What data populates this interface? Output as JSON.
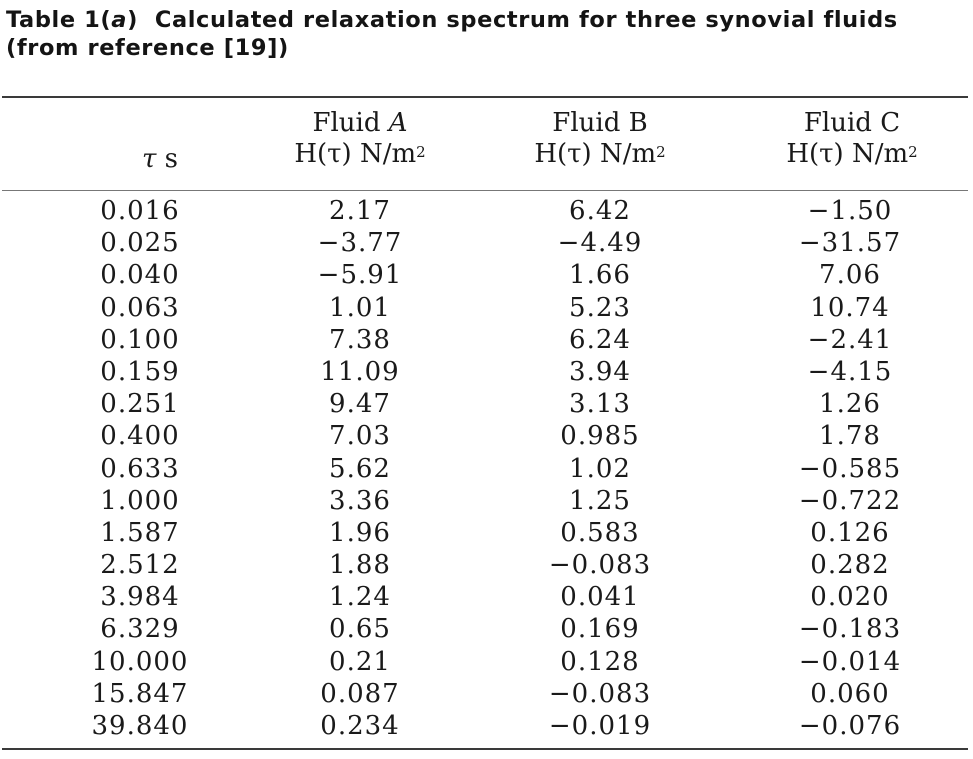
{
  "caption": {
    "label": "Table 1(",
    "label_italic": "a",
    "label_close": ")",
    "title_rest": "Calculated relaxation spectrum for three synovial fluids",
    "line2": "(from reference [19])"
  },
  "headers": {
    "tau": {
      "symbol": "τ",
      "unit": "s"
    },
    "fluid_a": {
      "name": "Fluid ",
      "name_italic": "A",
      "expr": "H(τ) N/m",
      "exp": "2"
    },
    "fluid_b": {
      "name": "Fluid B",
      "expr": "H(τ) N/m",
      "exp": "2"
    },
    "fluid_c": {
      "name": "Fluid C",
      "expr": "H(τ) N/m",
      "exp": "2"
    }
  },
  "rows": [
    {
      "tau": "0.016",
      "a": "2.17",
      "b": "6.42",
      "c": "−1.50"
    },
    {
      "tau": "0.025",
      "a": "−3.77",
      "b": "−4.49",
      "c": "−31.57"
    },
    {
      "tau": "0.040",
      "a": "−5.91",
      "b": "1.66",
      "c": "7.06"
    },
    {
      "tau": "0.063",
      "a": "1.01",
      "b": "5.23",
      "c": "10.74"
    },
    {
      "tau": "0.100",
      "a": "7.38",
      "b": "6.24",
      "c": "−2.41"
    },
    {
      "tau": "0.159",
      "a": "11.09",
      "b": "3.94",
      "c": "−4.15"
    },
    {
      "tau": "0.251",
      "a": "9.47",
      "b": "3.13",
      "c": "1.26"
    },
    {
      "tau": "0.400",
      "a": "7.03",
      "b": "0.985",
      "c": "1.78"
    },
    {
      "tau": "0.633",
      "a": "5.62",
      "b": "1.02",
      "c": "−0.585"
    },
    {
      "tau": "1.000",
      "a": "3.36",
      "b": "1.25",
      "c": "−0.722"
    },
    {
      "tau": "1.587",
      "a": "1.96",
      "b": "0.583",
      "c": "0.126"
    },
    {
      "tau": "2.512",
      "a": "1.88",
      "b": "−0.083",
      "c": "0.282"
    },
    {
      "tau": "3.984",
      "a": "1.24",
      "b": "0.041",
      "c": "0.020"
    },
    {
      "tau": "6.329",
      "a": "0.65",
      "b": "0.169",
      "c": "−0.183"
    },
    {
      "tau": "10.000",
      "a": "0.21",
      "b": "0.128",
      "c": "−0.014"
    },
    {
      "tau": "15.847",
      "a": "0.087",
      "b": "−0.083",
      "c": "0.060"
    },
    {
      "tau": "39.840",
      "a": "0.234",
      "b": "−0.019",
      "c": "−0.076"
    }
  ]
}
